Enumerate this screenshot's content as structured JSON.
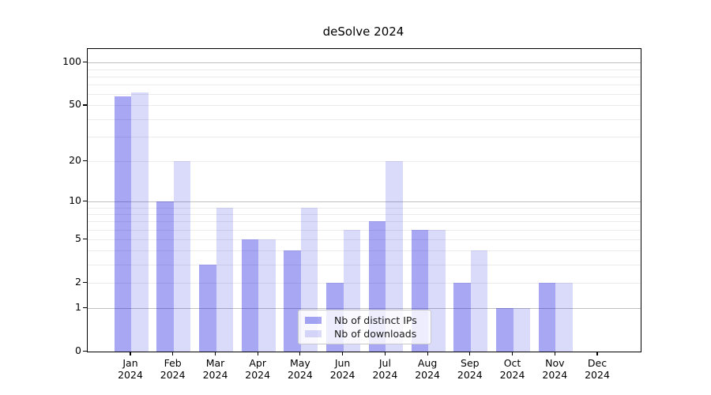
{
  "chart_data": {
    "type": "bar",
    "title": "deSolve 2024",
    "categories": [
      "Jan 2024",
      "Feb 2024",
      "Mar 2024",
      "Apr 2024",
      "May 2024",
      "Jun 2024",
      "Jul 2024",
      "Aug 2024",
      "Sep 2024",
      "Oct 2024",
      "Nov 2024",
      "Dec 2024"
    ],
    "series": [
      {
        "name": "Nb of distinct IPs",
        "color": "rgba(4,4,224,0.35)",
        "values": [
          58,
          10,
          3,
          5,
          4,
          2,
          7,
          6,
          2,
          1,
          2,
          0
        ]
      },
      {
        "name": "Nb of downloads",
        "color": "rgba(4,4,224,0.15)",
        "values": [
          62,
          20,
          9,
          5,
          9,
          6,
          20,
          6,
          4,
          1,
          2,
          0
        ]
      }
    ],
    "xlabel": "",
    "ylabel": "",
    "y_axis": {
      "scale": "log10(1+x)",
      "ticks": [
        0,
        1,
        2,
        5,
        10,
        20,
        50,
        100
      ],
      "max": 124,
      "major_gridlines": [
        1,
        10,
        100
      ],
      "minor_gridlines": [
        2,
        3,
        4,
        5,
        6,
        7,
        8,
        9,
        20,
        30,
        40,
        50,
        60,
        70,
        80,
        90
      ]
    },
    "grid": true,
    "legend_position": "lower center",
    "colors": {
      "distinct_ips_hex": "#a7a7f0",
      "downloads_hex": "#d9d9fa",
      "major_grid": "#c0c0c0",
      "minor_grid": "#ececec",
      "axis": "#000000",
      "legend_border": "#c9c9c9"
    }
  }
}
